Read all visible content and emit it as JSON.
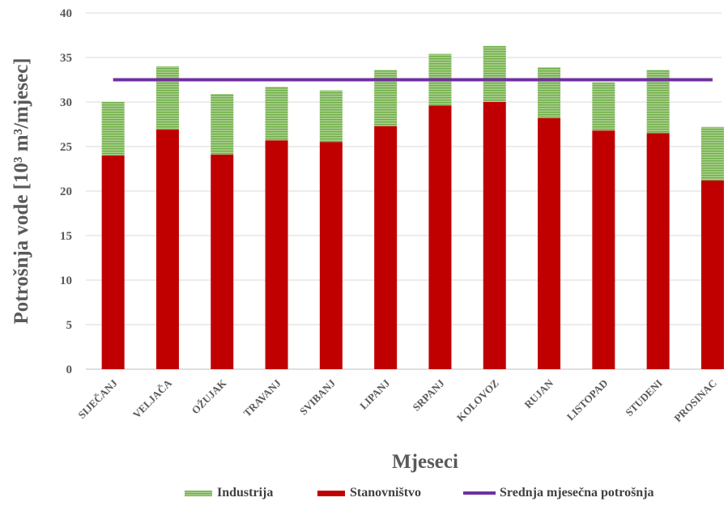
{
  "chart_data": {
    "type": "bar",
    "stacked": true,
    "title": "",
    "xlabel": "Mjeseci",
    "ylabel": "Potrošnja vode [10³ m³/mjesec]",
    "ylim": [
      0,
      40
    ],
    "yticks": [
      0,
      5,
      10,
      15,
      20,
      25,
      30,
      35,
      40
    ],
    "grid": true,
    "legend_position": "bottom",
    "categories": [
      "SIJEČANJ",
      "VELJAČA",
      "OŽUJAK",
      "TRAVANJ",
      "SVIBANJ",
      "LIPANJ",
      "SRPANJ",
      "KOLOVOZ",
      "RUJAN",
      "LISTOPAD",
      "STUDENI",
      "PROSINAC"
    ],
    "series": [
      {
        "name": "Stanovništvo",
        "color": "#c00000",
        "values": [
          24.0,
          26.9,
          24.1,
          25.7,
          25.5,
          27.3,
          29.6,
          30.0,
          28.2,
          26.8,
          26.5,
          21.2
        ]
      },
      {
        "name": "Industrija",
        "color": "#8fbf5a",
        "values": [
          6.0,
          7.1,
          6.8,
          6.0,
          5.8,
          6.3,
          5.8,
          6.3,
          5.7,
          5.4,
          7.1,
          6.0
        ]
      }
    ],
    "reference_line": {
      "name": "Srednja mjesečna potrošnja",
      "color": "#7030a0",
      "value": 32.5
    },
    "legend": [
      "Industrija",
      "Stanovništvo",
      "Srednja mjesečna potrošnja"
    ]
  }
}
